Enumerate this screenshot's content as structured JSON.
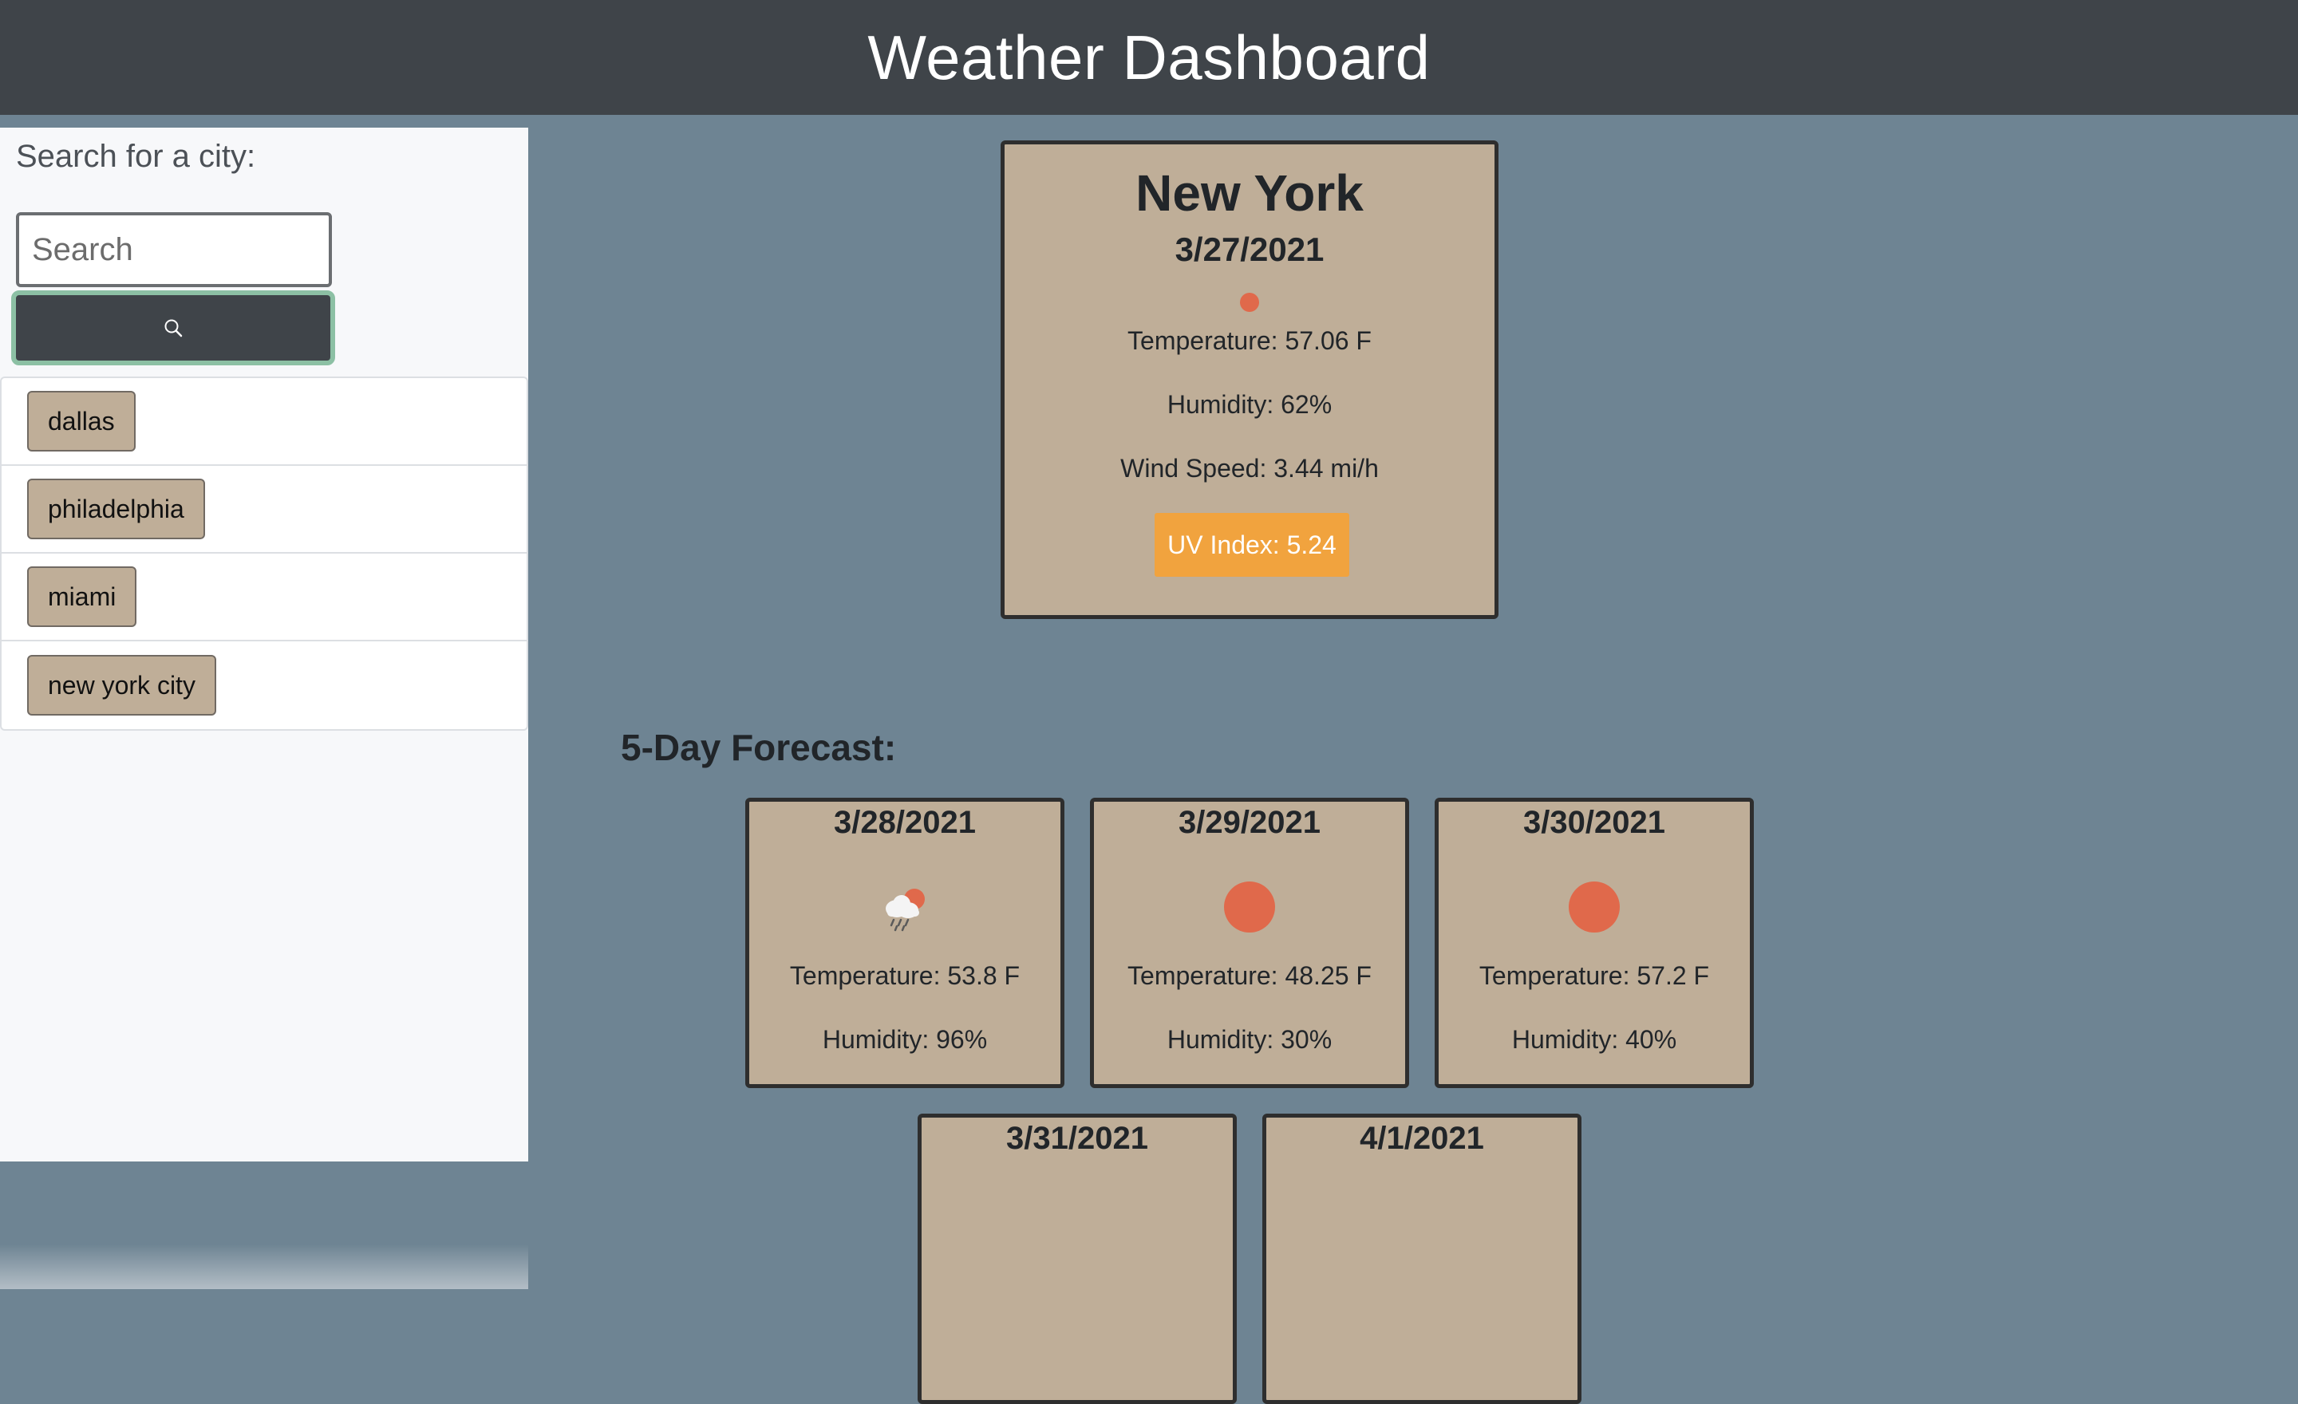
{
  "header": {
    "title": "Weather Dashboard"
  },
  "sidebar": {
    "search_label": "Search for a city:",
    "search_placeholder": "Search",
    "search_value": "",
    "history": [
      "dallas",
      "philadelphia",
      "miami",
      "new york city"
    ]
  },
  "current": {
    "city": "New York",
    "date": "3/27/2021",
    "icon": "sun-icon",
    "temperature": "Temperature: 57.06 F",
    "humidity": "Humidity: 62%",
    "wind": "Wind Speed: 3.44 mi/h",
    "uv": "UV Index: 5.24"
  },
  "forecast": {
    "title": "5-Day Forecast:",
    "days": [
      {
        "date": "3/28/2021",
        "icon": "rain-cloud-icon",
        "temperature": "Temperature: 53.8 F",
        "humidity": "Humidity: 96%"
      },
      {
        "date": "3/29/2021",
        "icon": "sun-icon",
        "temperature": "Temperature: 48.25 F",
        "humidity": "Humidity: 30%"
      },
      {
        "date": "3/30/2021",
        "icon": "sun-icon",
        "temperature": "Temperature: 57.2 F",
        "humidity": "Humidity: 40%"
      },
      {
        "date": "3/31/2021"
      },
      {
        "date": "4/1/2021"
      }
    ]
  },
  "colors": {
    "header_bg": "#3f4449",
    "main_bg": "#6e8493",
    "card_bg": "#bfae98",
    "sun": "#e0694b",
    "uv_badge": "#f1a33e",
    "search_button_border": "#8cc0a4"
  }
}
